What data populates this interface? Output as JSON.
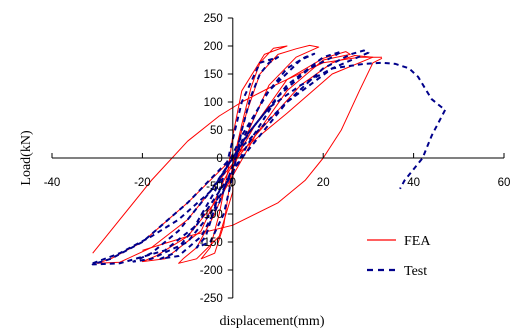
{
  "chart_data": {
    "type": "line",
    "title": "",
    "xlabel": "displacement(mm)",
    "ylabel": "Load(kN)",
    "xlim": [
      -40,
      60
    ],
    "ylim": [
      -250,
      250
    ],
    "x_ticks": [
      -40,
      -20,
      0,
      20,
      40,
      60
    ],
    "y_ticks": [
      -250,
      -200,
      -150,
      -100,
      -50,
      0,
      50,
      100,
      150,
      200,
      250
    ],
    "x_tick_labels": [
      "-40",
      "-20",
      "0",
      "20",
      "40",
      "60"
    ],
    "y_tick_labels": [
      "-250",
      "-200",
      "-150",
      "-100",
      "-50",
      "0",
      "50",
      "100",
      "150",
      "200",
      "250"
    ],
    "grid": false,
    "legend_position": "bottom-right",
    "series": [
      {
        "name": "FEA",
        "color": "#ff0000",
        "style": "solid",
        "loops": [
          [
            [
              0,
              -10
            ],
            [
              2,
              60
            ],
            [
              4,
              125
            ],
            [
              6,
              170
            ],
            [
              9,
              196
            ],
            [
              12,
              200
            ],
            [
              7,
              185
            ],
            [
              2,
              120
            ],
            [
              0,
              40
            ],
            [
              -1,
              -20
            ],
            [
              -3,
              -100
            ],
            [
              -5,
              -160
            ],
            [
              -7,
              -180
            ],
            [
              -4,
              -170
            ],
            [
              -2,
              -120
            ],
            [
              0,
              -10
            ]
          ],
          [
            [
              0,
              -10
            ],
            [
              3,
              80
            ],
            [
              6,
              150
            ],
            [
              10,
              185
            ],
            [
              14,
              195
            ],
            [
              17,
              201
            ],
            [
              19,
              198
            ],
            [
              14,
              180
            ],
            [
              8,
              130
            ],
            [
              3,
              40
            ],
            [
              0,
              -20
            ],
            [
              -4,
              -100
            ],
            [
              -8,
              -160
            ],
            [
              -11,
              -180
            ],
            [
              -12,
              -188
            ],
            [
              -8,
              -180
            ],
            [
              -3,
              -140
            ],
            [
              0,
              -60
            ],
            [
              0,
              -10
            ]
          ],
          [
            [
              -2,
              -40
            ],
            [
              5,
              60
            ],
            [
              12,
              140
            ],
            [
              20,
              178
            ],
            [
              25,
              190
            ],
            [
              26,
              185
            ],
            [
              20,
              175
            ],
            [
              12,
              120
            ],
            [
              5,
              40
            ],
            [
              -2,
              -60
            ],
            [
              -10,
              -140
            ],
            [
              -17,
              -175
            ],
            [
              -20,
              -185
            ],
            [
              -15,
              -180
            ],
            [
              -7,
              -130
            ],
            [
              -2,
              -40
            ]
          ],
          [
            [
              -5,
              -60
            ],
            [
              5,
              40
            ],
            [
              15,
              130
            ],
            [
              22,
              170
            ],
            [
              27,
              183
            ],
            [
              31,
              180
            ],
            [
              22,
              150
            ],
            [
              12,
              80
            ],
            [
              0,
              0
            ],
            [
              -10,
              -80
            ],
            [
              -20,
              -150
            ],
            [
              -27,
              -180
            ],
            [
              -30,
              -188
            ],
            [
              -25,
              -186
            ],
            [
              -18,
              -160
            ],
            [
              -10,
              -110
            ],
            [
              -5,
              -60
            ]
          ],
          [
            [
              -20,
              -165
            ],
            [
              -10,
              -140
            ],
            [
              0,
              -120
            ],
            [
              10,
              -80
            ],
            [
              16,
              -40
            ],
            [
              20,
              0
            ],
            [
              24,
              50
            ],
            [
              28,
              120
            ],
            [
              31,
              170
            ],
            [
              33,
              178
            ]
          ],
          [
            [
              -31,
              -170
            ],
            [
              -25,
              -110
            ],
            [
              -18,
              -40
            ],
            [
              -10,
              30
            ],
            [
              -3,
              75
            ],
            [
              2,
              100
            ],
            [
              8,
              125
            ],
            [
              12,
              140
            ],
            [
              20,
              170
            ],
            [
              28,
              180
            ],
            [
              33,
              180
            ]
          ]
        ]
      },
      {
        "name": "Test",
        "color": "#00008b",
        "style": "dashed",
        "loops": [
          [
            [
              0,
              -30
            ],
            [
              2,
              50
            ],
            [
              4,
              110
            ],
            [
              6,
              150
            ],
            [
              8,
              170
            ],
            [
              10,
              180
            ],
            [
              6,
              170
            ],
            [
              2,
              100
            ],
            [
              -1,
              0
            ],
            [
              -4,
              -90
            ],
            [
              -6,
              -140
            ],
            [
              -8,
              -160
            ],
            [
              -5,
              -150
            ],
            [
              -2,
              -100
            ],
            [
              0,
              -30
            ]
          ],
          [
            [
              -3,
              -80
            ],
            [
              2,
              30
            ],
            [
              7,
              110
            ],
            [
              12,
              160
            ],
            [
              16,
              180
            ],
            [
              18,
              186
            ],
            [
              15,
              175
            ],
            [
              8,
              120
            ],
            [
              2,
              40
            ],
            [
              -4,
              -60
            ],
            [
              -9,
              -130
            ],
            [
              -13,
              -170
            ],
            [
              -16,
              -180
            ],
            [
              -12,
              -175
            ],
            [
              -7,
              -140
            ],
            [
              -3,
              -80
            ]
          ],
          [
            [
              -5,
              -100
            ],
            [
              3,
              20
            ],
            [
              10,
              110
            ],
            [
              17,
              160
            ],
            [
              22,
              180
            ],
            [
              24,
              190
            ],
            [
              20,
              180
            ],
            [
              12,
              130
            ],
            [
              4,
              50
            ],
            [
              -4,
              -50
            ],
            [
              -12,
              -130
            ],
            [
              -18,
              -170
            ],
            [
              -22,
              -185
            ],
            [
              -18,
              -180
            ],
            [
              -10,
              -150
            ],
            [
              -5,
              -100
            ]
          ],
          [
            [
              -8,
              -120
            ],
            [
              2,
              0
            ],
            [
              12,
              100
            ],
            [
              20,
              160
            ],
            [
              26,
              185
            ],
            [
              29,
              192
            ],
            [
              30,
              188
            ],
            [
              22,
              160
            ],
            [
              12,
              100
            ],
            [
              2,
              20
            ],
            [
              -10,
              -80
            ],
            [
              -20,
              -150
            ],
            [
              -27,
              -180
            ],
            [
              -31,
              -190
            ],
            [
              -25,
              -188
            ],
            [
              -15,
              -165
            ],
            [
              -8,
              -120
            ]
          ],
          [
            [
              -31,
              -188
            ],
            [
              -25,
              -170
            ],
            [
              -18,
              -140
            ],
            [
              -12,
              -110
            ],
            [
              -5,
              -60
            ],
            [
              0,
              0
            ],
            [
              3,
              40
            ],
            [
              8,
              90
            ],
            [
              15,
              130
            ],
            [
              22,
              160
            ],
            [
              29,
              168
            ],
            [
              33,
              170
            ],
            [
              36,
              168
            ],
            [
              39,
              160
            ],
            [
              41,
              145
            ],
            [
              43,
              118
            ],
            [
              44,
              105
            ],
            [
              46,
              92
            ],
            [
              47,
              86
            ],
            [
              44,
              40
            ],
            [
              42,
              0
            ],
            [
              40,
              -20
            ],
            [
              38,
              -40
            ],
            [
              37,
              -55
            ]
          ]
        ]
      }
    ]
  }
}
